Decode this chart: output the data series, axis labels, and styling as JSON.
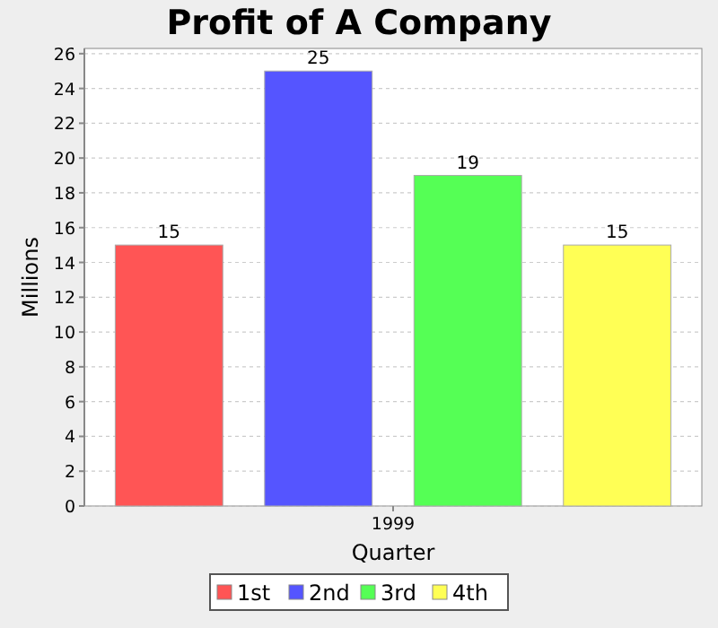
{
  "chart_data": {
    "type": "bar",
    "title": "Profit of A Company",
    "xlabel": "Quarter",
    "ylabel": "Millions",
    "categories": [
      "1999"
    ],
    "series": [
      {
        "name": "1st",
        "color": "#ff5555",
        "values": [
          15
        ]
      },
      {
        "name": "2nd",
        "color": "#5555ff",
        "values": [
          25
        ]
      },
      {
        "name": "3rd",
        "color": "#55ff55",
        "values": [
          19
        ]
      },
      {
        "name": "4th",
        "color": "#ffff55",
        "values": [
          15
        ]
      }
    ],
    "ylim": [
      0,
      26.3
    ],
    "yticks": [
      0,
      2,
      4,
      6,
      8,
      10,
      12,
      14,
      16,
      18,
      20,
      22,
      24,
      26
    ],
    "grid": "y",
    "legend": "bottom",
    "data_labels": true
  }
}
